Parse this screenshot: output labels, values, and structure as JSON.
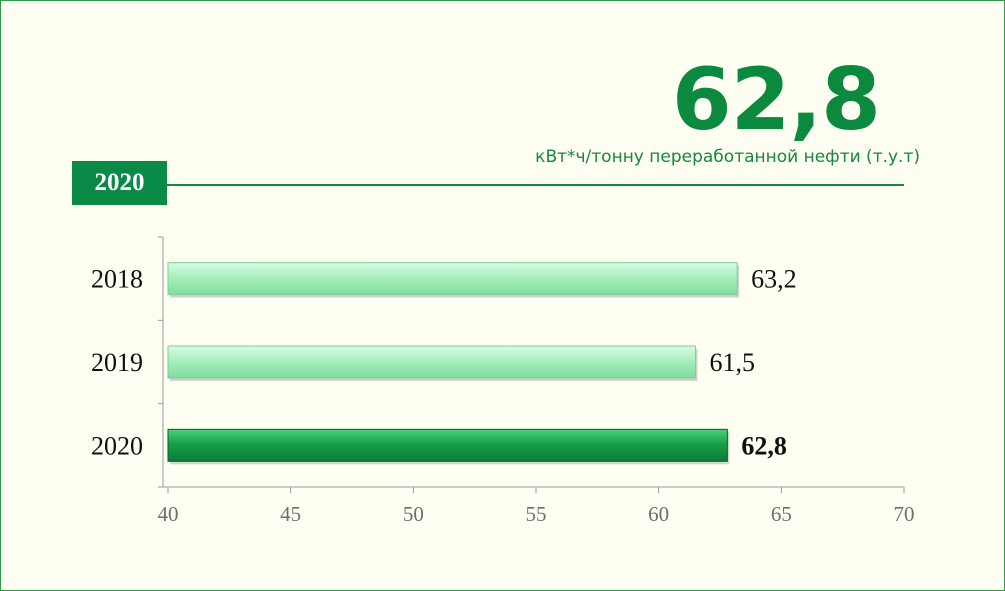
{
  "header": {
    "big_value": "62,8",
    "unit": "кВт*ч/тонну переработанной нефти (т.у.т)",
    "year_badge": "2020"
  },
  "colors": {
    "accent": "#0b8a3f",
    "bar_light": "#a8f0bf",
    "bar_highlight": "#0e8a3e",
    "frame": "#2e9a4e"
  },
  "chart_data": {
    "type": "bar",
    "orientation": "horizontal",
    "categories": [
      "2018",
      "2019",
      "2020"
    ],
    "values": [
      63.2,
      61.5,
      62.8
    ],
    "value_labels": [
      "63,2",
      "61,5",
      "62,8"
    ],
    "highlight_index": 2,
    "xlim": [
      40,
      70
    ],
    "xticks": [
      40,
      45,
      50,
      55,
      60,
      65,
      70
    ],
    "grid": false,
    "legend": "none"
  }
}
